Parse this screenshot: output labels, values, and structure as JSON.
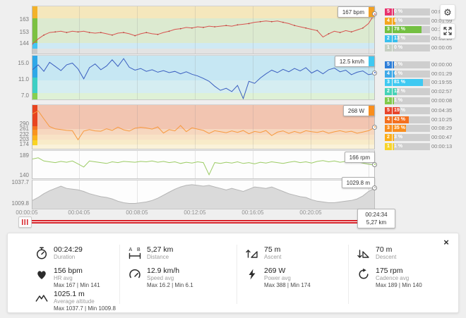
{
  "toolbar": {
    "settings_icon": "gear-icon",
    "fullscreen_icon": "expand-arrows-icon"
  },
  "x_axis": {
    "labels": [
      "00:00:05",
      "00:04:05",
      "00:08:05",
      "00:12:05",
      "00:16:05",
      "00:20:05",
      "00:24:05"
    ]
  },
  "scrubber": {
    "time": "00:24:34",
    "distance": "5,27 km"
  },
  "charts": [
    {
      "id": "hr",
      "name": "Heart rate",
      "type": "line",
      "unit": "bpm",
      "tooltip": "167 bpm",
      "tooltip_swatch": "#f2a124",
      "cursor_value": 167,
      "line_color": "#d9534f",
      "dot_color": "#b2463c",
      "range": [
        136.5,
        173.5
      ],
      "y_ticks": [
        {
          "label": "163",
          "v": 163
        },
        {
          "label": "153",
          "v": 153
        },
        {
          "label": "144",
          "v": 144
        }
      ],
      "bands": [
        {
          "frac": 0.25,
          "color": "#f5e7bc"
        },
        {
          "frac": 0.52,
          "color": "#dcead0"
        },
        {
          "frac": 0.13,
          "color": "#cfe9f4"
        },
        {
          "frac": 0.1,
          "color": "#e3e3e3"
        }
      ],
      "strip": [
        {
          "frac": 0.25,
          "color": "#f3b229"
        },
        {
          "frac": 0.52,
          "color": "#7cc142"
        },
        {
          "frac": 0.13,
          "color": "#45c5f2"
        },
        {
          "frac": 0.1,
          "color": "#c8c8c8"
        }
      ],
      "zones": [
        {
          "zone": "5",
          "pct": "0 %",
          "time": "00:00:00",
          "color": "#e8336e"
        },
        {
          "zone": "4",
          "pct": "8 %",
          "time": "00:01:59",
          "color": "#f4a71f"
        },
        {
          "zone": "3",
          "pct": "78 %",
          "time": "00:19:09",
          "color": "#74c042"
        },
        {
          "zone": "2",
          "pct": "13 %",
          "time": "00:03:16",
          "color": "#3bc0ee"
        },
        {
          "zone": "1",
          "pct": "0 %",
          "time": "00:00:05",
          "color": "#c6cfc2"
        }
      ],
      "values": [
        144,
        148,
        151,
        153,
        153.5,
        154,
        153,
        154,
        153.5,
        154,
        153,
        152.5,
        153,
        152,
        151,
        152.5,
        153,
        152,
        150.5,
        152,
        153,
        152,
        151.5,
        153,
        154,
        155.5,
        156,
        157,
        156.5,
        157.5,
        157,
        158,
        157.5,
        158,
        158.5,
        158,
        159,
        159.5,
        160,
        161,
        161.5,
        162,
        161.5,
        162,
        161,
        160,
        158.5,
        157.5,
        156.5,
        155.5,
        154.5,
        149.5,
        152,
        154,
        153,
        154.5,
        153.5,
        155,
        156.5,
        160,
        167
      ]
    },
    {
      "id": "speed",
      "name": "Speed",
      "type": "line",
      "unit": "km/h",
      "tooltip": "12.5 km/h",
      "tooltip_swatch": "#3fc9f2",
      "cursor_value": 12.5,
      "line_color": "#3b5fc0",
      "range": [
        6.2,
        16.8
      ],
      "y_ticks": [
        {
          "label": "15.0",
          "v": 15
        },
        {
          "label": "11.0",
          "v": 11
        },
        {
          "label": "7.0",
          "v": 7
        }
      ],
      "bands": [
        {
          "frac": 0.56,
          "color": "#c6e7f3"
        },
        {
          "frac": 0.3,
          "color": "#d5edf1"
        },
        {
          "frac": 0.14,
          "color": "#def1d6"
        }
      ],
      "strip": [
        {
          "frac": 0.5,
          "color": "#2fa8e8"
        },
        {
          "frac": 0.35,
          "color": "#3ecfc4"
        },
        {
          "frac": 0.15,
          "color": "#86cf4e"
        }
      ],
      "zones": [
        {
          "zone": "5",
          "pct": "0 %",
          "time": "00:00:00",
          "color": "#2e7ed8"
        },
        {
          "zone": "4",
          "pct": "6 %",
          "time": "00:01:29",
          "color": "#3fa9e8"
        },
        {
          "zone": "3",
          "pct": "81 %",
          "time": "00:19:55",
          "color": "#3fc9f2"
        },
        {
          "zone": "2",
          "pct": "12 %",
          "time": "00:02:57",
          "color": "#46d3b8"
        },
        {
          "zone": "1",
          "pct": "1 %",
          "time": "00:00:08",
          "color": "#82ca4c"
        }
      ],
      "values": [
        13.4,
        14.6,
        13.0,
        15.2,
        14.2,
        13.2,
        14.6,
        15.0,
        13.6,
        11.2,
        13.9,
        14.8,
        13.4,
        14.3,
        15.8,
        14.2,
        16.1,
        14.0,
        13.3,
        13.7,
        13.0,
        13.4,
        12.8,
        13.2,
        12.7,
        13.0,
        12.4,
        12.9,
        12.3,
        11.9,
        11.3,
        10.6,
        9.4,
        8.4,
        8.9,
        8.1,
        9.6,
        6.4,
        10.6,
        10.1,
        11.4,
        12.4,
        13.3,
        12.7,
        13.5,
        12.9,
        13.7,
        13.1,
        13.9,
        12.6,
        13.3,
        12.4,
        13.4,
        13.8,
        12.9,
        13.3,
        12.2,
        12.8,
        13.1,
        12.2,
        12.5
      ]
    },
    {
      "id": "power",
      "name": "Power",
      "type": "line",
      "unit": "W",
      "tooltip": "268 W",
      "tooltip_swatch": "#f98e1d",
      "cursor_value": 268,
      "line_color": "#f79a3e",
      "range": [
        152,
        394
      ],
      "y_ticks": [
        {
          "label": "290",
          "v": 290
        },
        {
          "label": "261",
          "v": 261
        },
        {
          "label": "232",
          "v": 232
        },
        {
          "label": "203",
          "v": 203
        },
        {
          "label": "174",
          "v": 174
        }
      ],
      "bands": [
        {
          "frac": 0.55,
          "color": "#f2c5b1"
        },
        {
          "frac": 0.12,
          "color": "#f6d7bf"
        },
        {
          "frac": 0.12,
          "color": "#f8e2c6"
        },
        {
          "frac": 0.11,
          "color": "#f8ebc9"
        },
        {
          "frac": 0.1,
          "color": "#faf2d9"
        }
      ],
      "strip": [
        {
          "frac": 0.48,
          "color": "#e8441f"
        },
        {
          "frac": 0.09,
          "color": "#f4731f"
        },
        {
          "frac": 0.12,
          "color": "#f9941f"
        },
        {
          "frac": 0.11,
          "color": "#fbb31c"
        },
        {
          "frac": 0.12,
          "color": "#f9d423"
        },
        {
          "frac": 0.08,
          "color": "transparent"
        }
      ],
      "zones": [
        {
          "zone": "5",
          "pct": "19 %",
          "time": "00:04:35",
          "color": "#e8452c"
        },
        {
          "zone": "4",
          "pct": "43 %",
          "time": "00:10:25",
          "color": "#f4701f"
        },
        {
          "zone": "3",
          "pct": "35 %",
          "time": "00:08:29",
          "color": "#f98e1d"
        },
        {
          "zone": "2",
          "pct": "3 %",
          "time": "00:00:47",
          "color": "#fcae17"
        },
        {
          "zone": "1",
          "pct": "1 %",
          "time": "00:00:13",
          "color": "#f8d42a"
        }
      ],
      "values": [
        345,
        362,
        318,
        275,
        262,
        258,
        254,
        252,
        202,
        250,
        258,
        251,
        249,
        263,
        254,
        272,
        257,
        250,
        266,
        271,
        267,
        261,
        273,
        239,
        258,
        251,
        281,
        247,
        268,
        261,
        254,
        237,
        252,
        247,
        241,
        251,
        243,
        253,
        235,
        248,
        242,
        253,
        225,
        244,
        251,
        237,
        248,
        239,
        252,
        247,
        243,
        250,
        238,
        246,
        252,
        244,
        249,
        238,
        245,
        252,
        268
      ]
    },
    {
      "id": "cadence",
      "name": "Cadence",
      "type": "line",
      "unit": "rpm",
      "tooltip": "166 rpm",
      "cursor_value": 166,
      "line_color": "#9ccc65",
      "range": [
        133,
        201
      ],
      "y_ticks": [
        {
          "label": "189",
          "v": 189
        },
        {
          "label": "140",
          "v": 140
        }
      ],
      "bands": [
        {
          "frac": 1,
          "color": "#fdfdfd"
        }
      ],
      "zones": [],
      "values": [
        181,
        184,
        176,
        174,
        172,
        175,
        173,
        176,
        169,
        161,
        176,
        174,
        172,
        170,
        174,
        172,
        175,
        174,
        173,
        175,
        174,
        176,
        173,
        175,
        172,
        174,
        170,
        173,
        171,
        174,
        172,
        142,
        172,
        170,
        173,
        171,
        174,
        170,
        172,
        169,
        173,
        171,
        174,
        172,
        170,
        173,
        175,
        172,
        174,
        171,
        175,
        177,
        174,
        176,
        173,
        175,
        172,
        174,
        171,
        168,
        166
      ]
    },
    {
      "id": "altitude",
      "name": "Altitude",
      "type": "area",
      "unit": "m",
      "tooltip": "1029.8 m",
      "cursor_value": 1029.8,
      "line_color": "#b5b5b5",
      "fill_color": "#dadada",
      "area": true,
      "range": [
        1003,
        1040.5
      ],
      "y_ticks": [
        {
          "label": "1037.7",
          "v": 1037.7
        },
        {
          "label": "1009.8",
          "v": 1009.8
        }
      ],
      "bands": [
        {
          "frac": 1,
          "color": "#fdfdfd"
        }
      ],
      "zones": [],
      "values": [
        1014,
        1018,
        1023,
        1027,
        1030,
        1033,
        1030,
        1029,
        1028,
        1026,
        1023,
        1021,
        1019,
        1018,
        1016,
        1013,
        1011,
        1010,
        1010,
        1011,
        1012,
        1014,
        1017,
        1021,
        1025,
        1029,
        1032,
        1034,
        1035,
        1034,
        1033,
        1034,
        1032,
        1030,
        1028,
        1030,
        1028,
        1026,
        1029,
        1032,
        1031,
        1030,
        1032,
        1029,
        1026,
        1023,
        1021,
        1019,
        1018,
        1015,
        1013,
        1012,
        1011,
        1011,
        1012,
        1013,
        1014,
        1016,
        1020,
        1026,
        1029.8
      ]
    }
  ],
  "summary": {
    "close_label": "×",
    "stats": [
      {
        "value": "00:24:29",
        "label": "Duration"
      },
      {
        "value": "5,27 km",
        "label": "Distance"
      },
      {
        "value": "75 m",
        "label": "Ascent"
      },
      {
        "value": "70 m",
        "label": "Descent"
      },
      {
        "value": "156 bpm",
        "label": "HR avg",
        "minmax": "Max 167  |  Min 141"
      },
      {
        "value": "12.9 km/h",
        "label": "Speed avg",
        "minmax": "Max 16.2  |  Min 6.1"
      },
      {
        "value": "269 W",
        "label": "Power avg",
        "minmax": "Max 388  |  Min 174"
      },
      {
        "value": "175 rpm",
        "label": "Cadence avg",
        "minmax": "Max 189  |  Min 140"
      },
      {
        "value": "1025.1 m",
        "label": "Average altitude",
        "minmax": "Max 1037.7  |  Min 1009.8"
      }
    ]
  }
}
